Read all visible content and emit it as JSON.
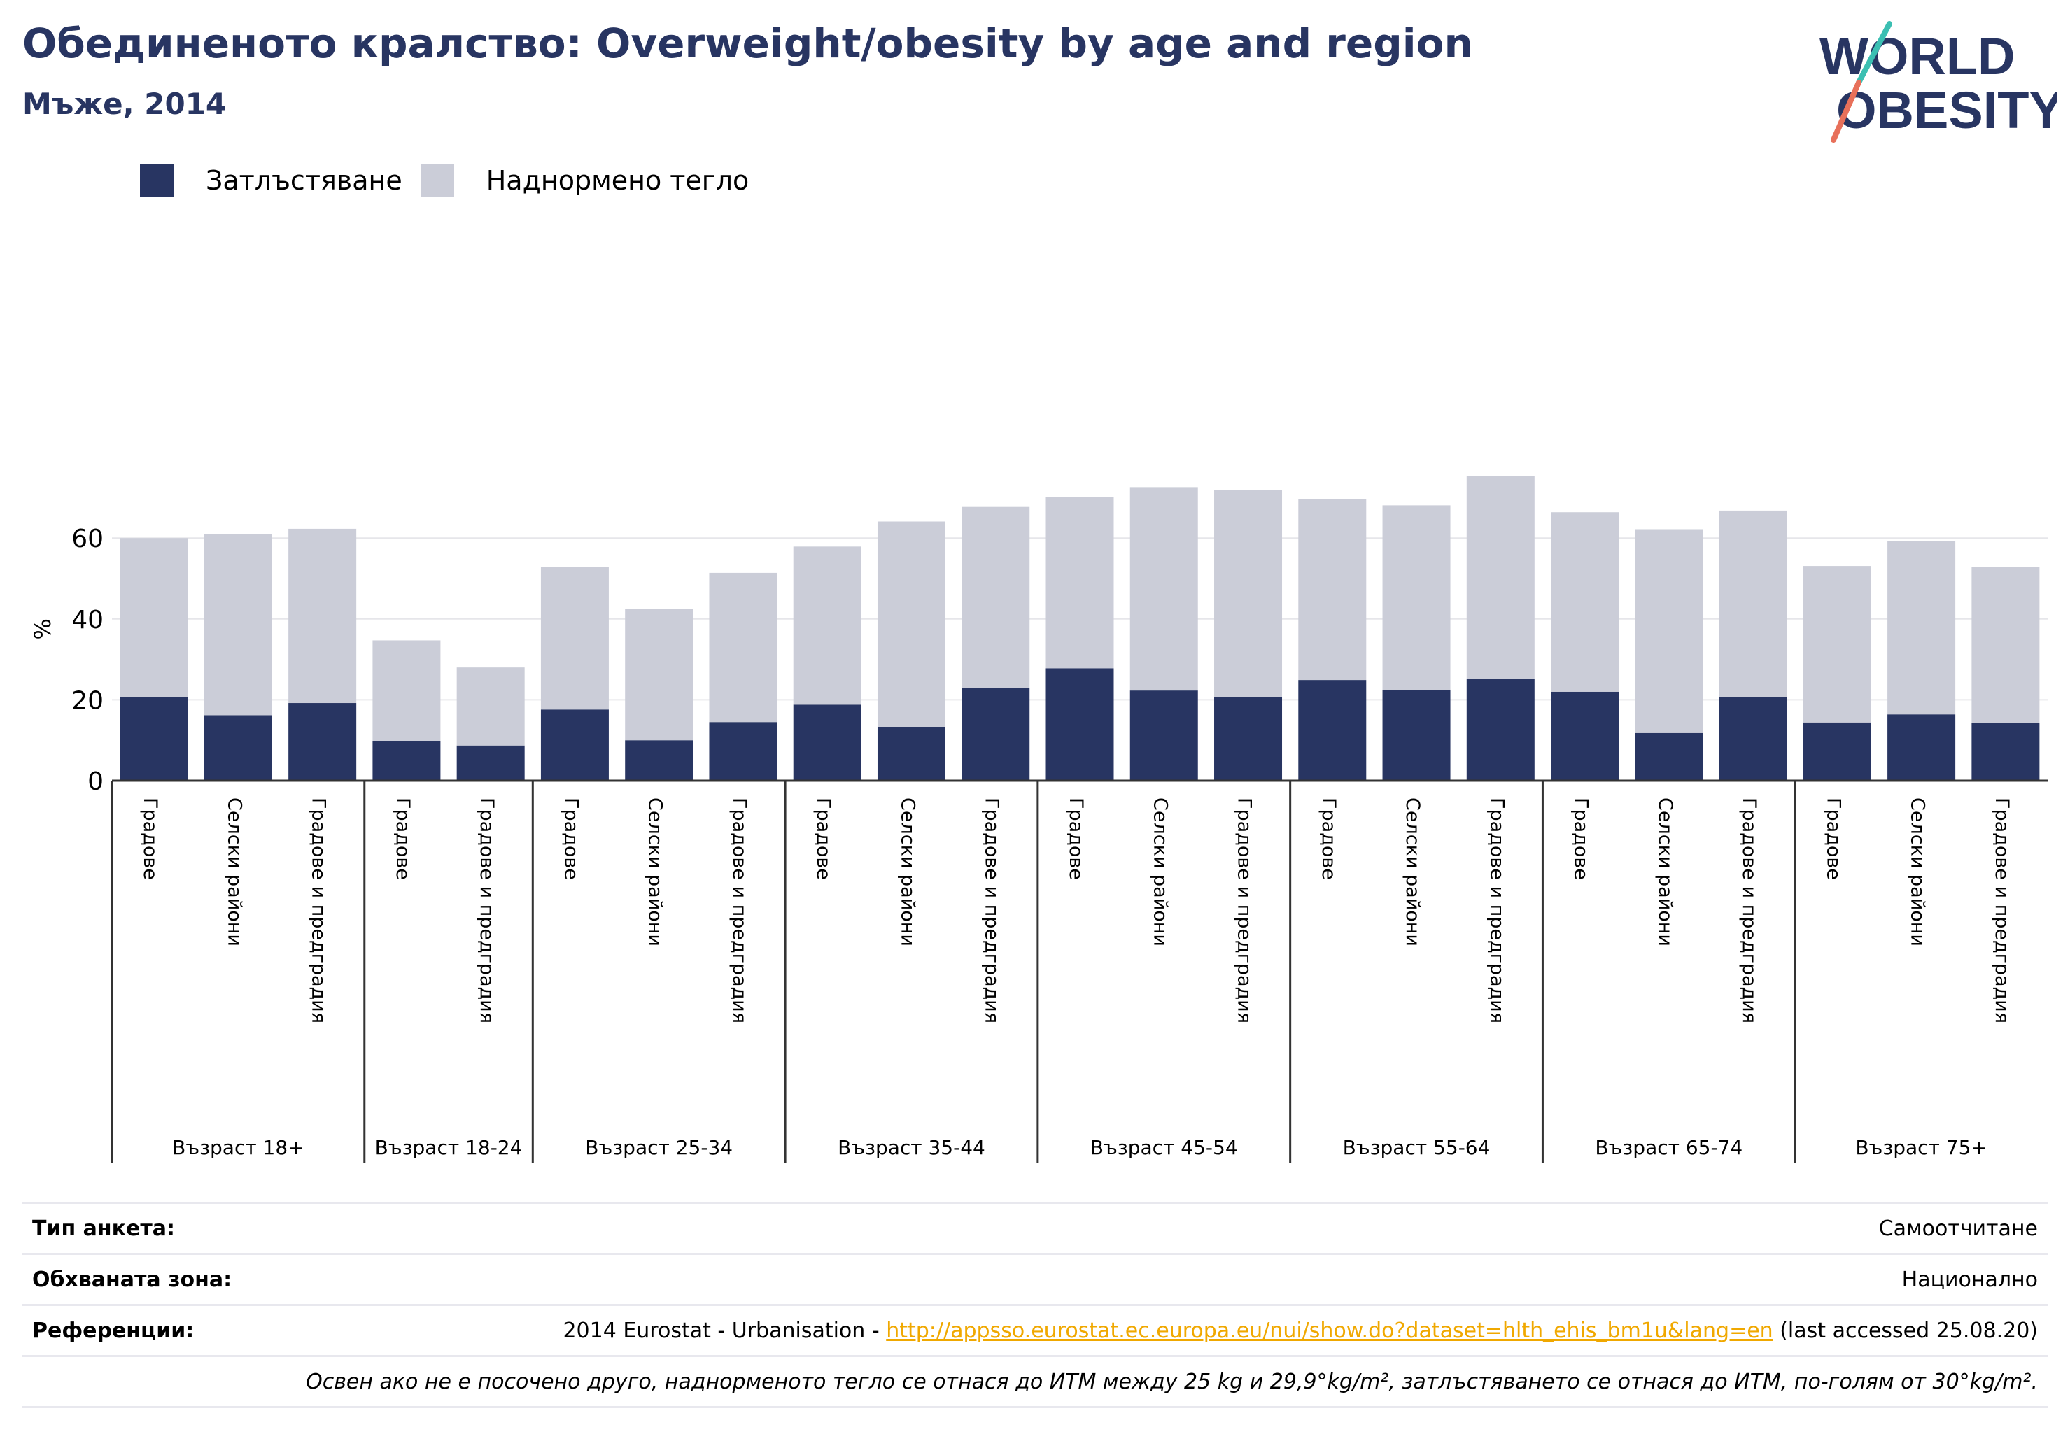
{
  "header": {
    "title": "Обединеното кралство: Overweight/obesity by age and region",
    "subtitle": "Мъже, 2014"
  },
  "logo": {
    "line1": "WORLD",
    "line2": "OBESITY"
  },
  "colors": {
    "obesity": "#283562",
    "overweight": "#cbcdd8",
    "title": "#283562",
    "link": "#f0a800"
  },
  "chart_data": {
    "type": "bar",
    "stacked": true,
    "ylabel": "%",
    "ylim": [
      0,
      80
    ],
    "yticks": [
      0,
      20,
      40,
      60
    ],
    "grid": true,
    "legend": {
      "position": "top-left",
      "entries": [
        "Затлъстяване",
        "Наднормено тегло"
      ]
    },
    "groups": [
      {
        "label": "Възраст 18+",
        "categories": [
          "Градове",
          "Селски райони",
          "Градове и предградия"
        ]
      },
      {
        "label": "Възраст 18-24",
        "categories": [
          "Градове",
          "Градове и предградия"
        ]
      },
      {
        "label": "Възраст 25-34",
        "categories": [
          "Градове",
          "Селски райони",
          "Градове и предградия"
        ]
      },
      {
        "label": "Възраст 35-44",
        "categories": [
          "Градове",
          "Селски райони",
          "Градове и предградия"
        ]
      },
      {
        "label": "Възраст 45-54",
        "categories": [
          "Градове",
          "Селски райони",
          "Градове и предградия"
        ]
      },
      {
        "label": "Възраст 55-64",
        "categories": [
          "Градове",
          "Селски райони",
          "Градове и предградия"
        ]
      },
      {
        "label": "Възраст 65-74",
        "categories": [
          "Градове",
          "Селски райони",
          "Градове и предградия"
        ]
      },
      {
        "label": "Възраст 75+",
        "categories": [
          "Градове",
          "Селски райони",
          "Градове и предградия"
        ]
      }
    ],
    "series": [
      {
        "name": "Затлъстяване",
        "values": [
          20.6,
          16.2,
          19.2,
          9.7,
          8.7,
          17.6,
          10.0,
          14.5,
          18.8,
          13.3,
          23.0,
          27.8,
          22.3,
          20.7,
          24.9,
          22.4,
          25.1,
          22.0,
          11.8,
          20.7,
          14.4,
          16.4,
          14.3
        ]
      },
      {
        "name": "Наднормено тегло",
        "values": [
          39.4,
          44.8,
          43.1,
          25.0,
          19.3,
          35.2,
          32.5,
          36.9,
          39.1,
          50.8,
          44.7,
          42.4,
          50.3,
          51.1,
          44.8,
          45.7,
          50.2,
          44.4,
          50.4,
          46.1,
          38.7,
          42.8,
          38.5
        ]
      }
    ]
  },
  "info": {
    "survey_label": "Тип анкета:",
    "survey_value": "Самоотчитане",
    "area_label": "Обхваната зона:",
    "area_value": "Национално",
    "ref_label": "Референции:",
    "ref_prefix": "2014 Eurostat - Urbanisation - ",
    "ref_link": "http://appsso.eurostat.ec.europa.eu/nui/show.do?dataset=hlth_ehis_bm1u&lang=en",
    "ref_suffix": " (last accessed 25.08.20)",
    "note": "Освен ако не е посочено друго, наднорменото тегло се отнася до ИТМ между 25 kg и 29,9°kg/m², затлъстяването се отнася до ИТМ, по-голям от 30°kg/m²."
  }
}
